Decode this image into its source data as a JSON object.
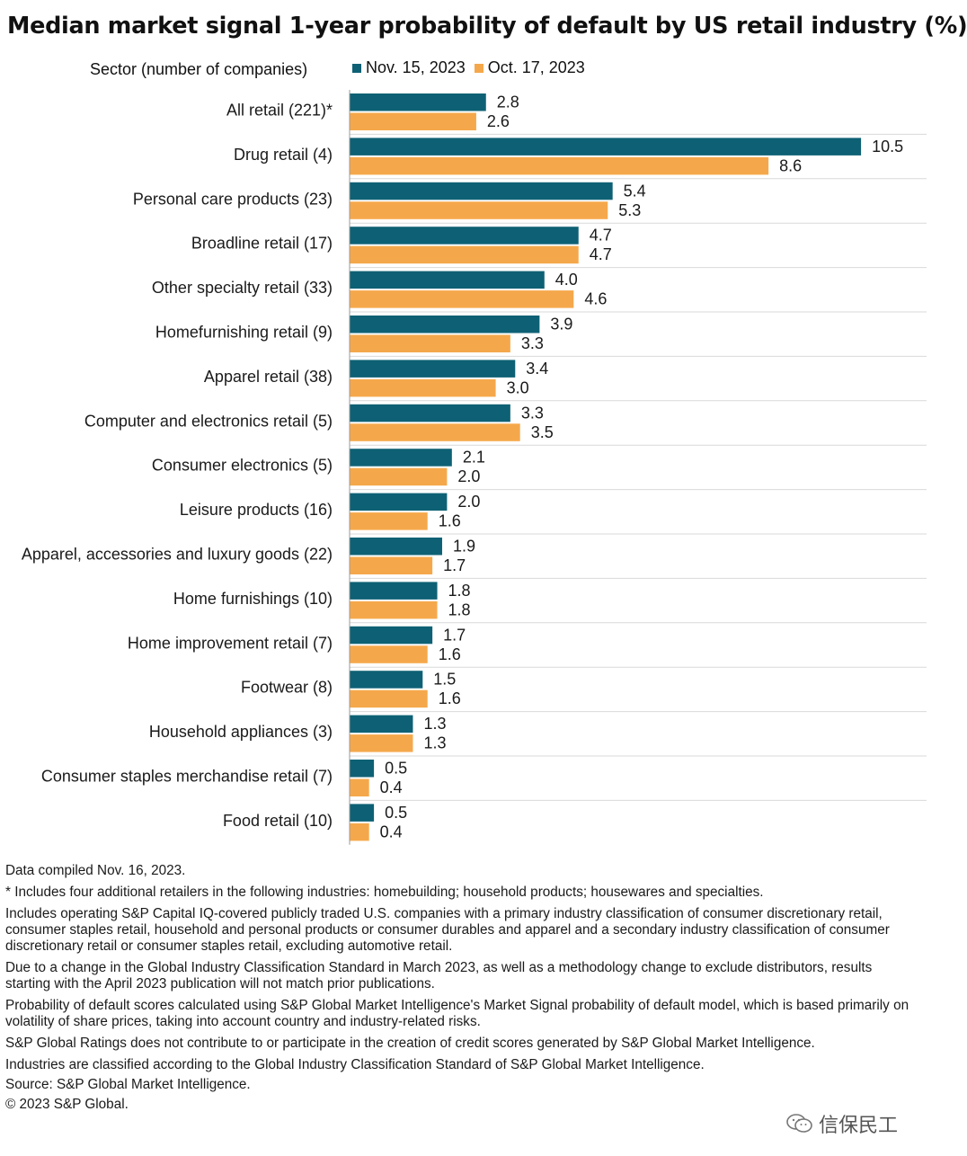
{
  "title": "Median market signal 1-year probability of default by US retail industry (%)",
  "sector_header": "Sector (number of companies)",
  "colors": {
    "nov": "#0e6174",
    "oct": "#f5a84b",
    "grid": "#d9d9d9"
  },
  "chart_data": {
    "type": "bar",
    "orientation": "horizontal",
    "title": "Median market signal 1-year probability of default by US retail industry (%)",
    "ylabel": "Sector (number of companies)",
    "legend_position": "top",
    "xlim": [
      0,
      11
    ],
    "categories": [
      "All retail (221)*",
      "Drug retail (4)",
      "Personal care products (23)",
      "Broadline retail (17)",
      "Other specialty retail (33)",
      "Homefurnishing retail (9)",
      "Apparel retail (38)",
      "Computer and electronics retail (5)",
      "Consumer electronics (5)",
      "Leisure products (16)",
      "Apparel, accessories and luxury goods (22)",
      "Home furnishings (10)",
      "Home improvement retail (7)",
      "Footwear (8)",
      "Household appliances (3)",
      "Consumer staples merchandise retail (7)",
      "Food retail (10)"
    ],
    "series": [
      {
        "name": "Nov. 15, 2023",
        "color": "#0e6174",
        "values": [
          2.8,
          10.5,
          5.4,
          4.7,
          4.0,
          3.9,
          3.4,
          3.3,
          2.1,
          2.0,
          1.9,
          1.8,
          1.7,
          1.5,
          1.3,
          0.5,
          0.5
        ],
        "labels": [
          "2.8",
          "10.5",
          "5.4",
          "4.7",
          "4.0",
          "3.9",
          "3.4",
          "3.3",
          "2.1",
          "2.0",
          "1.9",
          "1.8",
          "1.7",
          "1.5",
          "1.3",
          "0.5",
          "0.5"
        ]
      },
      {
        "name": "Oct. 17, 2023",
        "color": "#f5a84b",
        "values": [
          2.6,
          8.6,
          5.3,
          4.7,
          4.6,
          3.3,
          3.0,
          3.5,
          2.0,
          1.6,
          1.7,
          1.8,
          1.6,
          1.6,
          1.3,
          0.4,
          0.4
        ],
        "labels": [
          "2.6",
          "8.6",
          "5.3",
          "4.7",
          "4.6",
          "3.3",
          "3.0",
          "3.5",
          "2.0",
          "1.6",
          "1.7",
          "1.8",
          "1.6",
          "1.6",
          "1.3",
          "0.4",
          "0.4"
        ]
      }
    ]
  },
  "footnotes": [
    "Data compiled Nov. 16, 2023.",
    "* Includes four additional retailers in the following industries: homebuilding; household products; housewares and specialties.",
    "Includes operating S&P Capital IQ-covered publicly traded U.S. companies with a primary industry classification of consumer discretionary retail, consumer staples retail, household and personal products or consumer durables and apparel and a secondary industry classification of consumer discretionary retail or consumer staples retail, excluding automotive retail.",
    "Due to a change in the Global Industry Classification Standard in March 2023, as well as a methodology change to exclude distributors, results starting with the April 2023 publication will not match prior publications.",
    "Probability of default scores calculated using S&P Global Market Intelligence's Market Signal probability of default model, which is based primarily on volatility of share prices, taking into account country and industry-related risks.",
    "S&P Global Ratings does not contribute to or participate in the creation of credit scores generated by S&P Global Market Intelligence.",
    "Industries are classified according to the Global Industry Classification Standard of S&P Global Market Intelligence.",
    "Source: S&P Global Market Intelligence.",
    "© 2023 S&P Global."
  ],
  "watermark": {
    "text": "信保民工",
    "icon": "wechat-icon"
  }
}
